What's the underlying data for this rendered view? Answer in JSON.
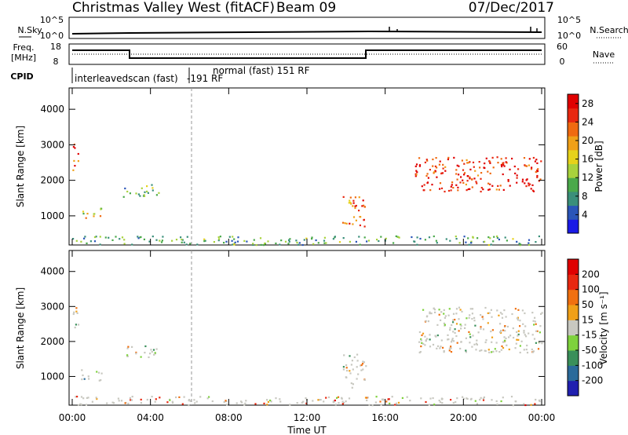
{
  "header": {
    "title": "Christmas Valley West (fitACF)",
    "beam": "Beam 09",
    "date": "07/Dec/2017"
  },
  "status_panels": {
    "nsky_label": "N.Sky",
    "nsky_ticks": [
      "10^5",
      "10^0"
    ],
    "nsearch_label": "N.Search",
    "nsearch_ticks": [
      "10^5",
      "10^0"
    ],
    "freq_label_1": "Freq.",
    "freq_label_2": "[MHz]",
    "freq_ticks": [
      "18",
      "8"
    ],
    "nave_label": "Nave",
    "nave_ticks": [
      "60",
      "0"
    ],
    "cpid_label": "CPID",
    "cpid_entries": [
      {
        "text": "interleavedscan (fast)",
        "start_hour": 0
      },
      {
        "text": "normal (fast) 151 RF",
        "start_hour": 6.1
      },
      {
        "text": "-191 RF",
        "start_hour": 6.1
      }
    ]
  },
  "chart_data": [
    {
      "type": "heatmap",
      "title": "",
      "xlabel": "Time UT",
      "ylabel": "Slant Range [km]",
      "x_ticks": [
        "00:00",
        "04:00",
        "08:00",
        "12:00",
        "16:00",
        "20:00",
        "00:00"
      ],
      "y_ticks": [
        "1000",
        "2000",
        "3000",
        "4000"
      ],
      "xlim_hours": [
        0,
        24
      ],
      "ylim_km": [
        180,
        4600
      ],
      "colorbar": {
        "label": "Power [dB]",
        "ticks": [
          "4",
          "8",
          "12",
          "16",
          "20",
          "24",
          "28"
        ],
        "range": [
          0,
          30
        ],
        "colors": [
          "#1a1ae6",
          "#2a55b8",
          "#3a8f7a",
          "#4aa94a",
          "#a8d23c",
          "#e6d21a",
          "#f0a018",
          "#f06a10",
          "#e82810",
          "#e00000"
        ]
      },
      "scatter_regions": [
        {
          "t0": 0.0,
          "t1": 0.35,
          "r0": 2300,
          "r1": 3100,
          "level": 0.85
        },
        {
          "t0": 0.4,
          "t1": 1.5,
          "r0": 900,
          "r1": 1250,
          "level": 0.55
        },
        {
          "t0": 2.5,
          "t1": 4.5,
          "r0": 1550,
          "r1": 1900,
          "level": 0.35
        },
        {
          "t0": 13.8,
          "t1": 15.0,
          "r0": 700,
          "r1": 1650,
          "level": 0.8
        },
        {
          "t0": 17.5,
          "t1": 24.0,
          "r0": 1700,
          "r1": 2700,
          "level": 0.92
        },
        {
          "t0": 0.0,
          "t1": 24.0,
          "r0": 200,
          "r1": 450,
          "level": 0.3
        }
      ],
      "vertical_marker_hour": 6.1
    },
    {
      "type": "heatmap",
      "title": "",
      "xlabel": "Time UT",
      "ylabel": "Slant Range [km]",
      "x_ticks": [
        "00:00",
        "04:00",
        "08:00",
        "12:00",
        "16:00",
        "20:00",
        "00:00"
      ],
      "y_ticks": [
        "1000",
        "2000",
        "3000",
        "4000"
      ],
      "xlim_hours": [
        0,
        24
      ],
      "ylim_km": [
        180,
        4600
      ],
      "colorbar": {
        "label": "Velocity [m s⁻¹]",
        "ticks": [
          "200",
          "100",
          "50",
          "15",
          "-15",
          "-50",
          "-100",
          "-200"
        ],
        "colors": [
          "#2020b0",
          "#2a6a9a",
          "#3a8f5a",
          "#7ed23c",
          "#c8c8c0",
          "#f0a018",
          "#f07010",
          "#e82810",
          "#e00000"
        ]
      },
      "scatter_regions": [
        {
          "t0": 0.0,
          "t1": 0.35,
          "r0": 2300,
          "r1": 3100,
          "level": 0.5
        },
        {
          "t0": 0.4,
          "t1": 1.5,
          "r0": 900,
          "r1": 1250,
          "level": 0.45
        },
        {
          "t0": 2.5,
          "t1": 4.5,
          "r0": 1550,
          "r1": 1900,
          "level": 0.5
        },
        {
          "t0": 13.8,
          "t1": 15.0,
          "r0": 700,
          "r1": 1650,
          "level": 0.5
        },
        {
          "t0": 17.5,
          "t1": 24.0,
          "r0": 1700,
          "r1": 3000,
          "level": 0.5
        },
        {
          "t0": 0.0,
          "t1": 24.0,
          "r0": 200,
          "r1": 450,
          "level": 0.65
        }
      ],
      "vertical_marker_hour": 6.1
    }
  ]
}
